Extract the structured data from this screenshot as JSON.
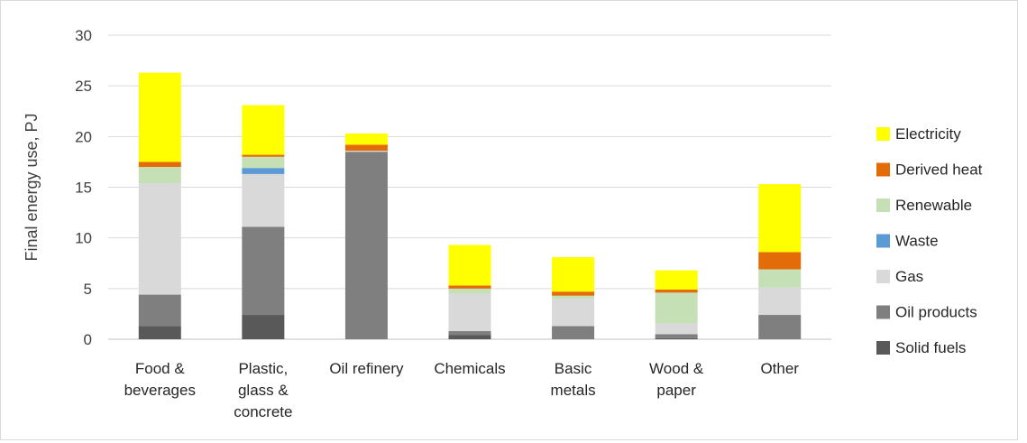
{
  "chart_data": {
    "type": "bar",
    "stacked": true,
    "title": "",
    "xlabel": "",
    "ylabel": "Final energy use, PJ",
    "ylim": [
      0,
      30
    ],
    "yticks": [
      0,
      5,
      10,
      15,
      20,
      25,
      30
    ],
    "grid": true,
    "legend_position": "right",
    "categories": [
      [
        "Food &",
        "beverages"
      ],
      [
        "Plastic,",
        "glass &",
        "concrete"
      ],
      [
        "Oil refinery"
      ],
      [
        "Chemicals"
      ],
      [
        "Basic",
        "metals"
      ],
      [
        "Wood &",
        "paper"
      ],
      [
        "Other"
      ]
    ],
    "series": [
      {
        "name": "Solid fuels",
        "color": "#595959",
        "values": [
          1.3,
          2.4,
          0.0,
          0.4,
          0.0,
          0.1,
          0.0
        ]
      },
      {
        "name": "Oil products",
        "color": "#7f7f7f",
        "values": [
          3.1,
          8.7,
          18.5,
          0.4,
          1.3,
          0.4,
          2.4
        ]
      },
      {
        "name": "Gas",
        "color": "#d9d9d9",
        "values": [
          11.0,
          5.2,
          0.1,
          3.7,
          2.7,
          1.1,
          2.7
        ]
      },
      {
        "name": "Waste",
        "color": "#5b9bd5",
        "values": [
          0.0,
          0.6,
          0.0,
          0.0,
          0.0,
          0.0,
          0.0
        ]
      },
      {
        "name": "Renewable",
        "color": "#c5e0b4",
        "values": [
          1.6,
          1.1,
          0.0,
          0.5,
          0.3,
          3.0,
          1.8
        ]
      },
      {
        "name": "Derived heat",
        "color": "#e36c09",
        "values": [
          0.5,
          0.2,
          0.6,
          0.3,
          0.4,
          0.3,
          1.7
        ]
      },
      {
        "name": "Electricity",
        "color": "#ffff00",
        "values": [
          8.8,
          4.9,
          1.1,
          4.0,
          3.4,
          1.9,
          6.7
        ]
      }
    ]
  }
}
